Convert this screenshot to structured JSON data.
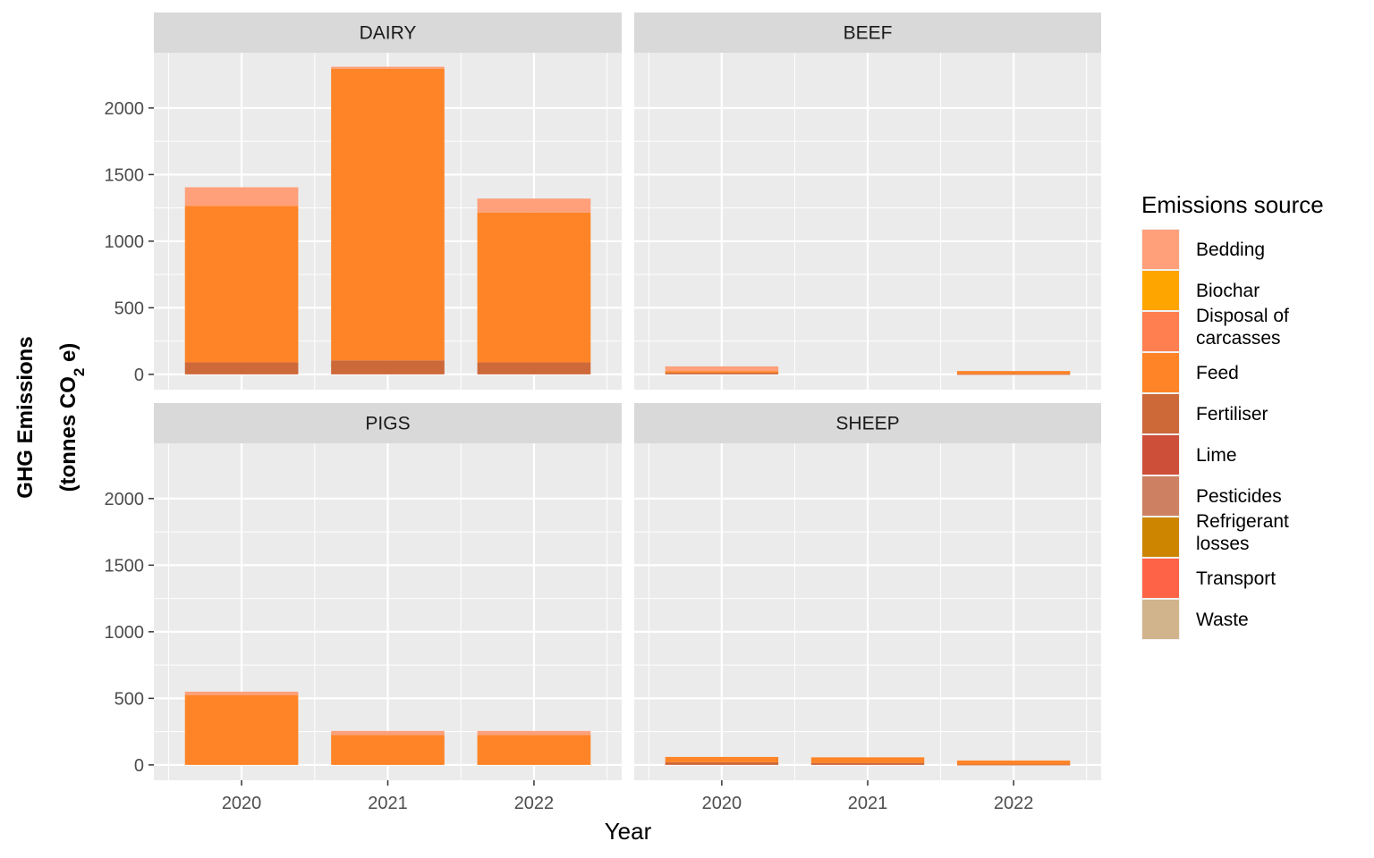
{
  "chart_data": {
    "type": "bar",
    "stacked": true,
    "facets": [
      "DAIRY",
      "BEEF",
      "PIGS",
      "SHEEP"
    ],
    "facet_layout": "2x2",
    "categories": [
      "2020",
      "2021",
      "2022"
    ],
    "xlabel": "Year",
    "ylabel_line1": "GHG Emissions",
    "ylabel_line2": {
      "pre": "(tonnes CO",
      "sub": "2",
      "post": " e)"
    },
    "ylim": [
      0,
      2400
    ],
    "yticks": [
      0,
      500,
      1000,
      1500,
      2000
    ],
    "grid": true,
    "legend": {
      "title": "Emissions source",
      "placement": "right",
      "entries": [
        {
          "name": "Bedding",
          "color": "#FFA07A"
        },
        {
          "name": "Biochar",
          "color": "#FFA500"
        },
        {
          "name": "Disposal of carcasses",
          "lines": [
            "Disposal of",
            "carcasses"
          ],
          "color": "#FF7F50"
        },
        {
          "name": "Feed",
          "color": "#FF8427"
        },
        {
          "name": "Fertiliser",
          "color": "#CD6839"
        },
        {
          "name": "Lime",
          "color": "#CD4F39"
        },
        {
          "name": "Pesticides",
          "color": "#CD8162"
        },
        {
          "name": "Refrigerant losses",
          "lines": [
            "Refrigerant",
            "losses"
          ],
          "color": "#CD8500"
        },
        {
          "name": "Transport",
          "color": "#FF6347"
        },
        {
          "name": "Waste",
          "color": "#D2B48C"
        }
      ]
    },
    "series": [
      {
        "name": "Fertiliser",
        "values": {
          "DAIRY": [
            90,
            105,
            90
          ],
          "BEEF": [
            12,
            0,
            3
          ],
          "PIGS": [
            0,
            0,
            0
          ],
          "SHEEP": [
            20,
            15,
            3
          ]
        }
      },
      {
        "name": "Feed",
        "values": {
          "DAIRY": [
            1175,
            2190,
            1125
          ],
          "BEEF": [
            13,
            0,
            22
          ],
          "PIGS": [
            525,
            225,
            225
          ],
          "SHEEP": [
            40,
            42,
            30
          ]
        }
      },
      {
        "name": "Bedding",
        "values": {
          "DAIRY": [
            140,
            15,
            105
          ],
          "BEEF": [
            35,
            0,
            0
          ],
          "PIGS": [
            25,
            30,
            30
          ],
          "SHEEP": [
            0,
            0,
            0
          ]
        }
      }
    ]
  }
}
